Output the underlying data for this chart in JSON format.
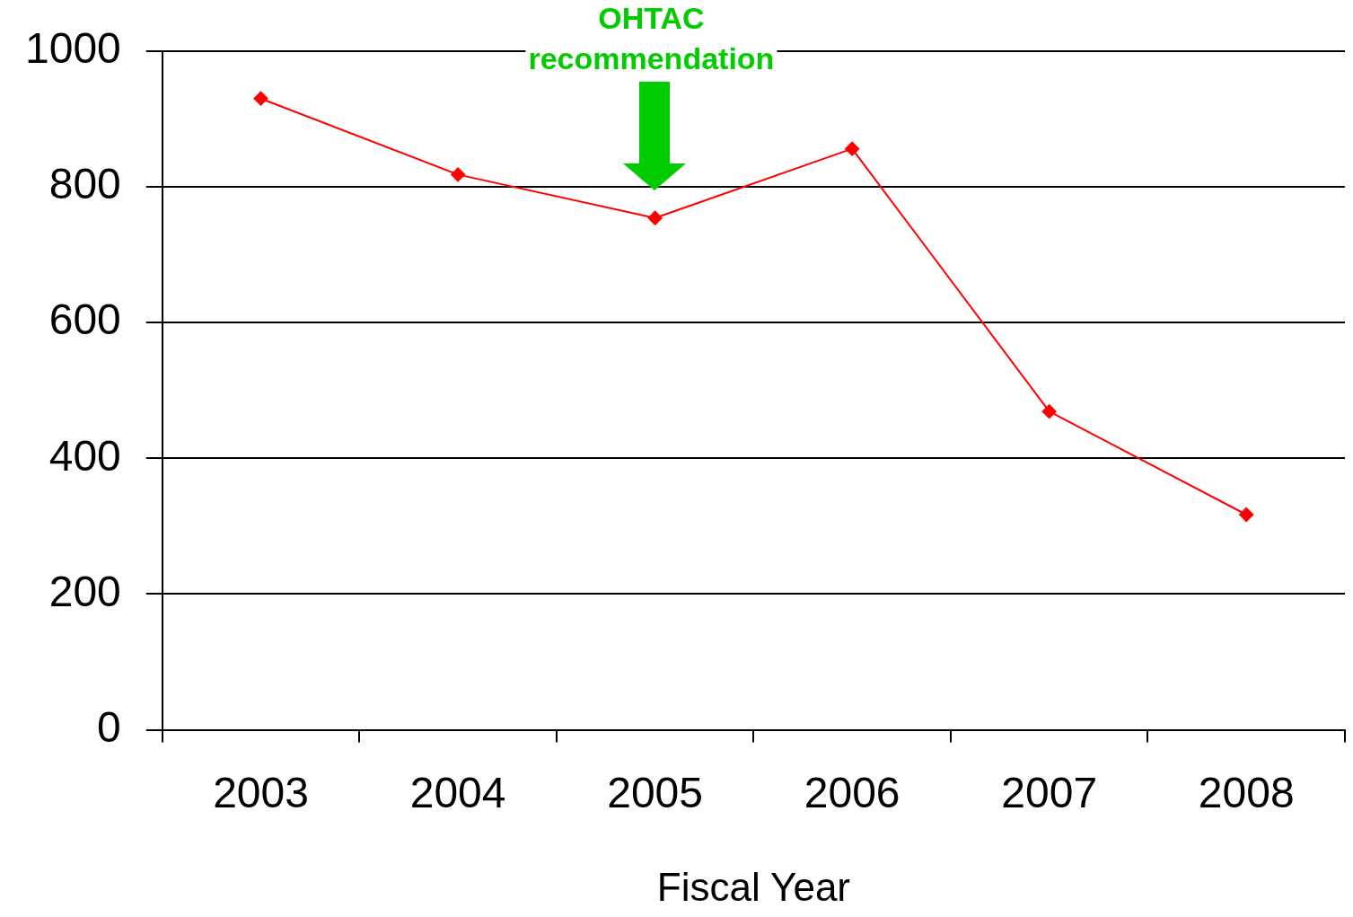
{
  "chart_data": {
    "type": "line",
    "xlabel": "Fiscal Year",
    "categories": [
      "2003",
      "2004",
      "2005",
      "2006",
      "2007",
      "2008"
    ],
    "series": [
      {
        "color": "#ff0000",
        "values": [
          930,
          818,
          754,
          856,
          469,
          317
        ]
      }
    ],
    "ylim": [
      0,
      1000
    ],
    "yticks": [
      0,
      200,
      400,
      600,
      800,
      1000
    ],
    "grid": "y",
    "legend": false,
    "marker": "diamond",
    "line_style": "solid",
    "annotations": [
      "OHTAC recommendation"
    ]
  }
}
